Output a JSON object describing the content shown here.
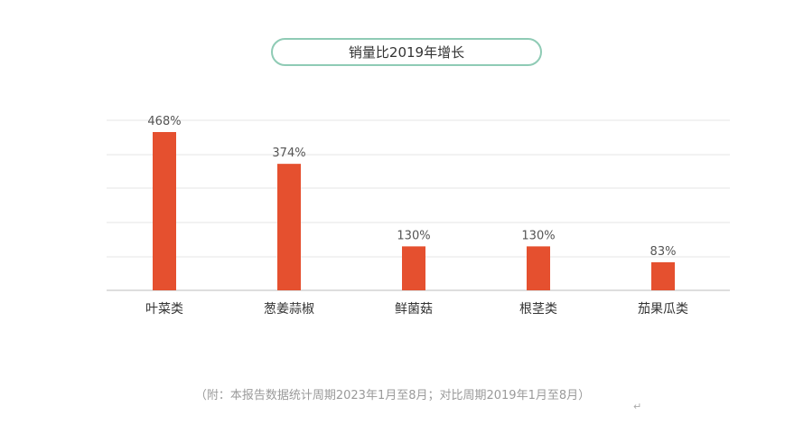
{
  "chart_data": {
    "type": "bar",
    "title": "销量比2019年增长",
    "categories": [
      "叶菜类",
      "葱姜蒜椒",
      "鲜菌菇",
      "根茎类",
      "茄果瓜类"
    ],
    "values": [
      468,
      374,
      130,
      130,
      83
    ],
    "data_labels": [
      "468%",
      "374%",
      "130%",
      "130%",
      "83%"
    ],
    "ylim": [
      0,
      500
    ],
    "grid": true,
    "bar_color": "#e5502f"
  },
  "footnote": "（附：本报告数据统计周期2023年1月至8月；对比周期2019年1月至8月）",
  "paragraph_mark": "↵"
}
